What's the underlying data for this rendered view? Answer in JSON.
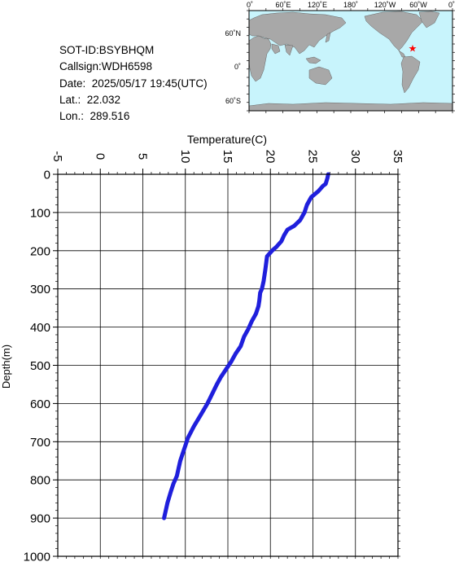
{
  "info": {
    "sot_id": "SOT-ID:BSYBHQM",
    "callsign": "Callsign:WDH6598",
    "date": "Date:  2025/05/17 19:45(UTC)",
    "lat": "Lat.:  22.032",
    "lon": "Lon.:  289.516"
  },
  "map": {
    "lon_labels": [
      "0˚",
      "60˚E",
      "120˚E",
      "180˚",
      "120˚W",
      "60˚W",
      "0˚"
    ],
    "lat_labels": [
      "60˚N",
      "0˚",
      "60˚S"
    ],
    "ocean_color": "#c8f4fc",
    "land_color": "#a8a8a8",
    "marker_color": "#ff0000",
    "marker_lon": 289.516,
    "marker_lat": 22.032
  },
  "chart_data": {
    "type": "line",
    "xlabel": "Temperature(C)",
    "ylabel": "Depth(m)",
    "xlim": [
      -5,
      35
    ],
    "ylim": [
      1000,
      0
    ],
    "x_ticks": [
      "-5",
      "0",
      "5",
      "10",
      "15",
      "20",
      "25",
      "30",
      "35"
    ],
    "y_ticks": [
      "0",
      "100",
      "200",
      "300",
      "400",
      "500",
      "600",
      "700",
      "800",
      "900",
      "1000"
    ],
    "grid": true,
    "line_color": "#1f1fdc",
    "series": [
      {
        "temperature": [
          26.8,
          26.7,
          26.5,
          26.2,
          25.6,
          24.8,
          24.3,
          24.0,
          23.5,
          22.8,
          22.0,
          21.6,
          21.3,
          20.7,
          20.2,
          19.6,
          19.4,
          19.2,
          19.0,
          18.8,
          18.7,
          18.6,
          18.3,
          17.8,
          17.4,
          16.9,
          16.5,
          15.9,
          15.4,
          14.8,
          14.2,
          13.7,
          12.6,
          11.8,
          11.0,
          10.3,
          10.0,
          9.7,
          9.4,
          9.2,
          9.0,
          8.6,
          8.3,
          7.9,
          7.7,
          7.5
        ],
        "depth": [
          0,
          10,
          25,
          30,
          45,
          60,
          80,
          100,
          120,
          135,
          145,
          160,
          175,
          190,
          200,
          215,
          250,
          280,
          300,
          310,
          330,
          345,
          365,
          385,
          405,
          425,
          450,
          470,
          490,
          510,
          530,
          550,
          600,
          630,
          660,
          690,
          710,
          730,
          750,
          770,
          790,
          810,
          830,
          860,
          880,
          900
        ]
      }
    ]
  }
}
